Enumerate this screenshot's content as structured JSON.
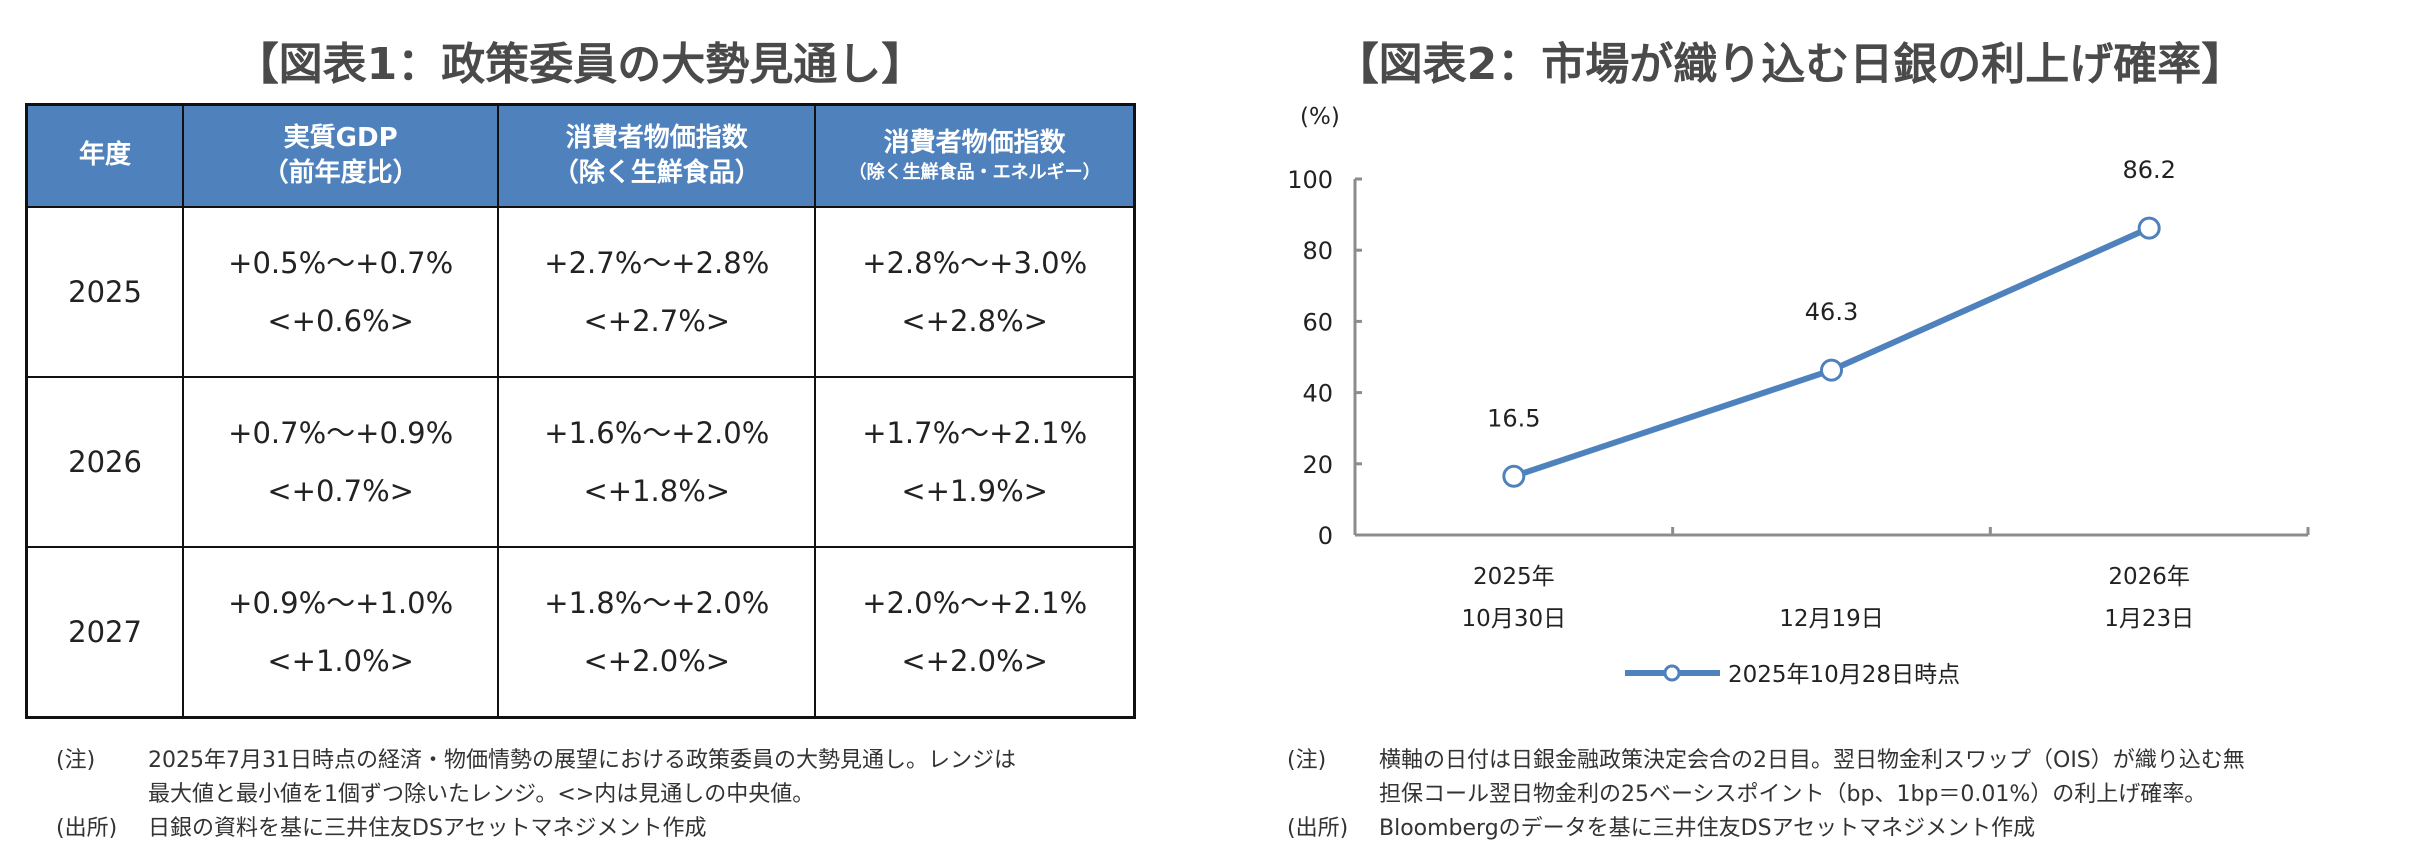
{
  "fig1": {
    "title": "【図表1：政策委員の大勢見通し】",
    "headers": [
      {
        "line1": "年度",
        "line2": ""
      },
      {
        "line1": "実質GDP",
        "line2": "（前年度比）"
      },
      {
        "line1": "消費者物価指数",
        "line2": "（除く生鮮食品）"
      },
      {
        "line1": "消費者物価指数",
        "line2": "（除く生鮮食品・エネルギー）"
      }
    ],
    "rows": [
      {
        "year": "2025",
        "gdp": [
          "+0.5%～+0.7%",
          "<+0.6%>"
        ],
        "core": [
          "+2.7%～+2.8%",
          "<+2.7%>"
        ],
        "corecore": [
          "+2.8%～+3.0%",
          "<+2.8%>"
        ]
      },
      {
        "year": "2026",
        "gdp": [
          "+0.7%～+0.9%",
          "<+0.7%>"
        ],
        "core": [
          "+1.6%～+2.0%",
          "<+1.8%>"
        ],
        "corecore": [
          "+1.7%～+2.1%",
          "<+1.9%>"
        ]
      },
      {
        "year": "2027",
        "gdp": [
          "+0.9%～+1.0%",
          "<+1.0%>"
        ],
        "core": [
          "+1.8%～+2.0%",
          "<+2.0%>"
        ],
        "corecore": [
          "+2.0%～+2.1%",
          "<+2.0%>"
        ]
      }
    ],
    "note_label": "(注)",
    "note_lines": [
      "2025年7月31日時点の経済・物価情勢の展望における政策委員の大勢見通し。レンジは",
      "最大値と最小値を1個ずつ除いたレンジ。<>内は見通しの中央値。"
    ],
    "source_label": "(出所)",
    "source": "日銀の資料を基に三井住友DSアセットマネジメント作成"
  },
  "fig2": {
    "title": "【図表2：市場が織り込む日銀の利上げ確率】",
    "note_label": "(注)",
    "note_lines": [
      "横軸の日付は日銀金融政策決定会合の2日目。翌日物金利スワップ（OIS）が織り込む無",
      "担保コール翌日物金利の25ベーシスポイント（bp、1bp＝0.01%）の利上げ確率。"
    ],
    "source_label": "(出所)",
    "source": "Bloombergのデータを基に三井住友DSアセットマネジメント作成"
  },
  "chart_data": {
    "type": "line",
    "title": "【図表2：市場が織り込む日銀の利上げ確率】",
    "ylabel": "(%)",
    "ylim": [
      0,
      100
    ],
    "yticks": [
      "0",
      "20",
      "40",
      "60",
      "80",
      "100"
    ],
    "categories": [
      [
        "2025年",
        "10月30日"
      ],
      [
        "",
        "12月19日"
      ],
      [
        "2026年",
        "1月23日"
      ]
    ],
    "series": [
      {
        "name": "2025年10月28日時点",
        "values": [
          16.5,
          46.3,
          86.2
        ],
        "labels": [
          "16.5",
          "46.3",
          "86.2"
        ],
        "color": "#4f81bd"
      }
    ],
    "legend": "bottom",
    "grid": false
  }
}
